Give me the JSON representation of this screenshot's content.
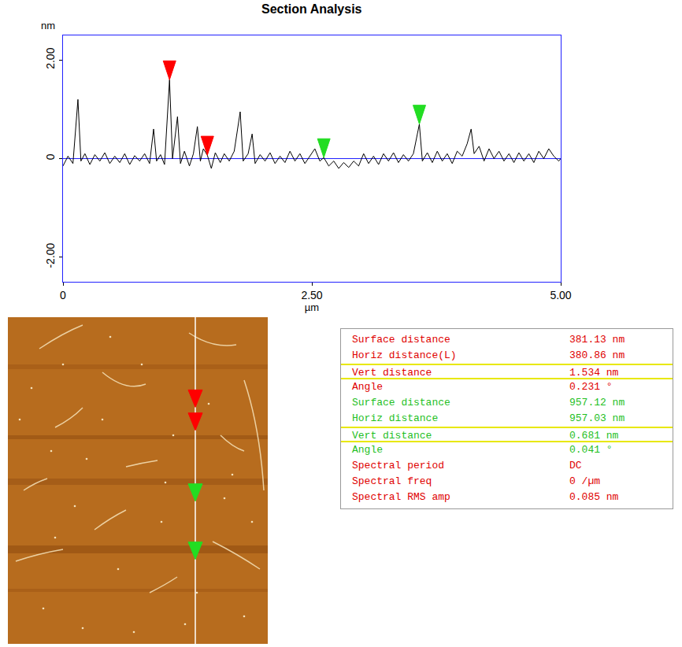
{
  "chart_data": {
    "type": "line",
    "title": "Section Analysis",
    "y_label": "nm",
    "x_label": "µm",
    "color": "#000000",
    "grid": false,
    "x": [
      0.0,
      0.05,
      0.1,
      0.15,
      0.18,
      0.22,
      0.27,
      0.32,
      0.37,
      0.42,
      0.47,
      0.52,
      0.57,
      0.62,
      0.67,
      0.72,
      0.77,
      0.82,
      0.87,
      0.91,
      0.94,
      0.98,
      1.02,
      1.07,
      1.1,
      1.15,
      1.18,
      1.22,
      1.27,
      1.31,
      1.35,
      1.38,
      1.41,
      1.45,
      1.49,
      1.53,
      1.58,
      1.62,
      1.67,
      1.72,
      1.78,
      1.81,
      1.86,
      1.9,
      1.93,
      1.98,
      2.03,
      2.08,
      2.13,
      2.18,
      2.23,
      2.28,
      2.33,
      2.38,
      2.43,
      2.48,
      2.53,
      2.58,
      2.62,
      2.67,
      2.72,
      2.77,
      2.82,
      2.87,
      2.92,
      2.97,
      3.02,
      3.07,
      3.12,
      3.17,
      3.22,
      3.27,
      3.32,
      3.37,
      3.42,
      3.47,
      3.52,
      3.58,
      3.61,
      3.66,
      3.71,
      3.76,
      3.81,
      3.86,
      3.91,
      3.96,
      4.01,
      4.06,
      4.1,
      4.13,
      4.18,
      4.23,
      4.28,
      4.33,
      4.38,
      4.43,
      4.48,
      4.53,
      4.58,
      4.63,
      4.68,
      4.73,
      4.78,
      4.83,
      4.88,
      4.93,
      4.98,
      5.0
    ],
    "values": [
      -0.15,
      0.05,
      -0.1,
      1.2,
      -0.05,
      0.1,
      -0.12,
      0.08,
      -0.05,
      0.12,
      -0.1,
      0.05,
      -0.08,
      0.1,
      -0.12,
      0.06,
      -0.05,
      0.1,
      -0.1,
      0.6,
      -0.05,
      0.08,
      -0.12,
      1.6,
      0.0,
      0.85,
      -0.1,
      0.15,
      -0.15,
      0.1,
      0.65,
      -0.05,
      0.2,
      0.07,
      -0.2,
      0.12,
      -0.08,
      0.1,
      -0.05,
      0.15,
      0.95,
      -0.05,
      0.1,
      0.5,
      -0.1,
      0.08,
      -0.05,
      0.12,
      -0.1,
      0.05,
      -0.08,
      0.15,
      -0.05,
      0.1,
      -0.1,
      0.05,
      0.2,
      -0.05,
      0.02,
      -0.15,
      -0.05,
      -0.2,
      -0.08,
      -0.18,
      -0.05,
      -0.15,
      0.1,
      -0.1,
      0.05,
      -0.12,
      0.1,
      -0.05,
      0.12,
      -0.08,
      0.08,
      -0.05,
      0.1,
      0.7,
      -0.05,
      0.12,
      -0.08,
      0.15,
      -0.05,
      0.1,
      -0.1,
      0.15,
      0.05,
      0.3,
      0.6,
      0.1,
      0.25,
      -0.05,
      0.2,
      0.0,
      0.15,
      -0.05,
      0.1,
      -0.08,
      0.12,
      -0.05,
      0.1,
      -0.08,
      0.15,
      0.0,
      0.2,
      0.05,
      -0.05,
      0.0
    ],
    "xlim": [
      0,
      5
    ],
    "xticks": [
      0,
      {
        "value": 2.5,
        "label": "2.50"
      },
      {
        "value": 5,
        "label": "5.00"
      }
    ],
    "ylim": [
      -2.5,
      2.5
    ],
    "yticks": [
      {
        "value": -2,
        "label": "-2.00"
      },
      0,
      {
        "value": 2,
        "label": "2.00"
      }
    ],
    "cursors": [
      {
        "x": 1.07,
        "y": 1.6,
        "color": "#ff0000"
      },
      {
        "x": 1.45,
        "y": 0.07,
        "color": "#ff0000"
      },
      {
        "x": 2.62,
        "y": 0.02,
        "color": "#22dd22"
      },
      {
        "x": 3.58,
        "y": 0.7,
        "color": "#22dd22"
      }
    ]
  },
  "table": {
    "rows": [
      {
        "label": "Surface distance",
        "value": "381.13 nm",
        "color": "#e00000",
        "boxed": false
      },
      {
        "label": "Horiz distance(L)",
        "value": "380.86 nm",
        "color": "#e00000",
        "boxed": false
      },
      {
        "label": "Vert distance",
        "value": "1.534 nm",
        "color": "#e00000",
        "boxed": true
      },
      {
        "label": "Angle",
        "value": "0.231 °",
        "color": "#e00000",
        "boxed": false
      },
      {
        "label": "Surface distance",
        "value": "957.12 nm",
        "color": "#1fbf1f",
        "boxed": false
      },
      {
        "label": "Horiz distance",
        "value": "957.03 nm",
        "color": "#1fbf1f",
        "boxed": false
      },
      {
        "label": "Vert distance",
        "value": "0.681 nm",
        "color": "#1fbf1f",
        "boxed": true
      },
      {
        "label": "Angle",
        "value": "0.041 °",
        "color": "#1fbf1f",
        "boxed": false
      },
      {
        "label": "Spectral period",
        "value": "DC",
        "color": "#e00000",
        "boxed": false
      },
      {
        "label": "Spectral freq",
        "value": "0 /µm",
        "color": "#e00000",
        "boxed": false
      },
      {
        "label": "Spectral RMS amp",
        "value": "0.085 nm",
        "color": "#e00000",
        "boxed": false
      }
    ]
  }
}
